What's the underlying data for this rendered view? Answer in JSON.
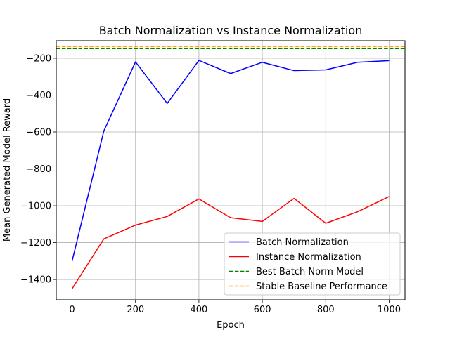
{
  "chart_data": {
    "type": "line",
    "title": "Batch Normalization vs Instance Normalization",
    "xlabel": "Epoch",
    "ylabel": "Mean Generated Model Reward",
    "xlim": [
      -50,
      1050
    ],
    "ylim": [
      -1510,
      -105
    ],
    "xticks": [
      0,
      200,
      400,
      600,
      800,
      1000
    ],
    "yticks": [
      -1400,
      -1200,
      -1000,
      -800,
      -600,
      -400,
      -200
    ],
    "grid": true,
    "legend_position": "lower-right",
    "x": [
      0,
      100,
      200,
      300,
      400,
      500,
      600,
      700,
      800,
      900,
      1000
    ],
    "series": [
      {
        "name": "Batch Normalization",
        "color": "#0000ff",
        "style": "solid",
        "values": [
          -1300,
          -595,
          -220,
          -445,
          -212,
          -283,
          -222,
          -267,
          -263,
          -222,
          -213
        ]
      },
      {
        "name": "Instance Normalization",
        "color": "#ff0000",
        "style": "solid",
        "values": [
          -1450,
          -1180,
          -1105,
          -1058,
          -963,
          -1065,
          -1085,
          -960,
          -1095,
          -1033,
          -950
        ]
      }
    ],
    "hlines": [
      {
        "name": "Best Batch Norm Model",
        "color": "#008000",
        "style": "dashed",
        "value": -148
      },
      {
        "name": "Stable Baseline Performance",
        "color": "#ffa500",
        "style": "dashed",
        "value": -137
      }
    ]
  }
}
